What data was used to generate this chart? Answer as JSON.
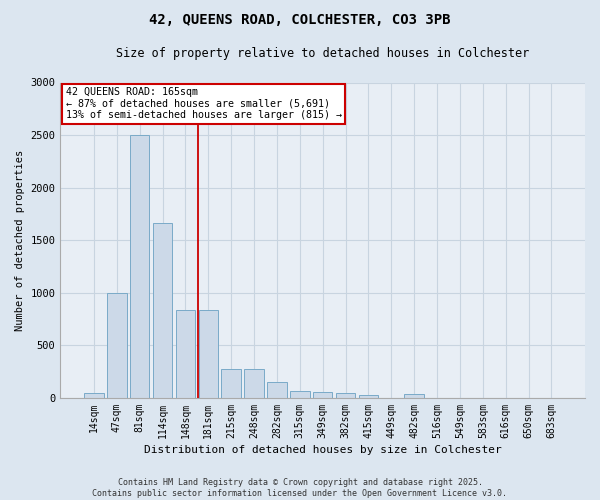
{
  "title_line1": "42, QUEENS ROAD, COLCHESTER, CO3 3PB",
  "title_line2": "Size of property relative to detached houses in Colchester",
  "xlabel": "Distribution of detached houses by size in Colchester",
  "ylabel": "Number of detached properties",
  "categories": [
    "14sqm",
    "47sqm",
    "81sqm",
    "114sqm",
    "148sqm",
    "181sqm",
    "215sqm",
    "248sqm",
    "282sqm",
    "315sqm",
    "349sqm",
    "382sqm",
    "415sqm",
    "449sqm",
    "482sqm",
    "516sqm",
    "549sqm",
    "583sqm",
    "616sqm",
    "650sqm",
    "683sqm"
  ],
  "values": [
    50,
    1000,
    2500,
    1660,
    840,
    840,
    280,
    280,
    150,
    70,
    60,
    50,
    30,
    0,
    40,
    0,
    0,
    0,
    0,
    0,
    0
  ],
  "bar_color": "#ccd9e8",
  "bar_edge_color": "#7aaac8",
  "grid_color": "#c8d4e0",
  "annotation_box_color": "#cc0000",
  "annotation_text": "42 QUEENS ROAD: 165sqm\n← 87% of detached houses are smaller (5,691)\n13% of semi-detached houses are larger (815) →",
  "vline_x": 4.55,
  "vline_color": "#cc0000",
  "ylim": [
    0,
    3000
  ],
  "yticks": [
    0,
    500,
    1000,
    1500,
    2000,
    2500,
    3000
  ],
  "footer_line1": "Contains HM Land Registry data © Crown copyright and database right 2025.",
  "footer_line2": "Contains public sector information licensed under the Open Government Licence v3.0.",
  "bg_color": "#dce6f0",
  "plot_bg_color": "#e8eef5"
}
